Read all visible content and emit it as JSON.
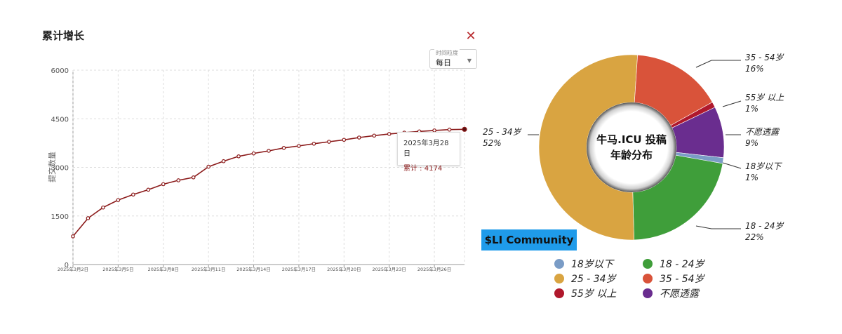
{
  "left_panel": {
    "title": "累计增长",
    "close_glyph": "✕",
    "granularity_label": "时间粒度",
    "granularity_value": "每日",
    "tooltip_date": "2025年3月28日",
    "tooltip_value": "累计 : 4174"
  },
  "right_panel": {
    "center_title_line1": "牛马.ICU 投稿",
    "center_title_line2": "年龄分布",
    "badge": "$LI Community"
  },
  "chart_data": [
    {
      "type": "line",
      "title": "累计增长",
      "ylabel": "提交数量",
      "xlabel": "",
      "ylim": [
        0,
        6000
      ],
      "y_ticks": [
        "0",
        "1500",
        "3000",
        "4500",
        "6000"
      ],
      "x_tick_labels": [
        "2025年3月2日",
        "2025年3月5日",
        "2025年3月8日",
        "2025年3月11日",
        "2025年3月14日",
        "2025年3月17日",
        "2025年3月20日",
        "2025年3月23日",
        "2025年3月26日"
      ],
      "x": [
        "2025-03-02",
        "2025-03-03",
        "2025-03-04",
        "2025-03-05",
        "2025-03-06",
        "2025-03-07",
        "2025-03-08",
        "2025-03-09",
        "2025-03-10",
        "2025-03-11",
        "2025-03-12",
        "2025-03-13",
        "2025-03-14",
        "2025-03-15",
        "2025-03-16",
        "2025-03-17",
        "2025-03-18",
        "2025-03-19",
        "2025-03-20",
        "2025-03-21",
        "2025-03-22",
        "2025-03-23",
        "2025-03-24",
        "2025-03-25",
        "2025-03-26",
        "2025-03-27",
        "2025-03-28"
      ],
      "values": [
        870,
        1430,
        1760,
        1990,
        2160,
        2310,
        2480,
        2600,
        2690,
        3020,
        3190,
        3340,
        3430,
        3510,
        3600,
        3660,
        3730,
        3790,
        3850,
        3920,
        3980,
        4030,
        4070,
        4110,
        4140,
        4165,
        4174
      ],
      "series_color": "#8b1a1a",
      "grid": true
    },
    {
      "type": "pie",
      "donut": true,
      "labels": [
        "18 - 24岁",
        "25 - 34岁",
        "35 - 54岁",
        "55岁 以上",
        "不愿透露",
        "18岁以下"
      ],
      "values": [
        22,
        52,
        16,
        1,
        9,
        1
      ],
      "display": [
        "22%",
        "52%",
        "16%",
        "1%",
        "9%",
        "1%"
      ],
      "colors": {
        "18岁以下": "#7a9cc6",
        "18 - 24岁": "#3f9e3a",
        "25 - 34岁": "#d9a441",
        "35 - 54岁": "#d9533a",
        "55岁 以上": "#b0182c",
        "不愿透露": "#6a2d8f"
      },
      "legend": [
        {
          "label": "18岁以下",
          "color": "#7a9cc6"
        },
        {
          "label": "18 - 24岁",
          "color": "#3f9e3a"
        },
        {
          "label": "25 - 34岁",
          "color": "#d9a441"
        },
        {
          "label": "35 - 54岁",
          "color": "#d9533a"
        },
        {
          "label": "55岁 以上",
          "color": "#b0182c"
        },
        {
          "label": "不愿透露",
          "color": "#6a2d8f"
        }
      ]
    }
  ]
}
